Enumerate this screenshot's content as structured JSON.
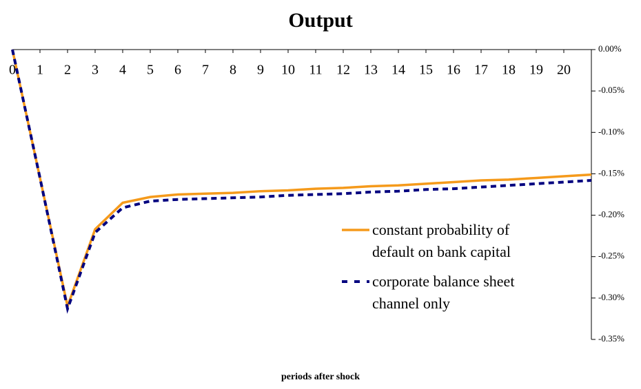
{
  "chart_data": {
    "type": "line",
    "title": "Output",
    "x_label": "periods after shock",
    "x": [
      0,
      1,
      2,
      3,
      4,
      5,
      6,
      7,
      8,
      9,
      10,
      11,
      12,
      13,
      14,
      15,
      16,
      17,
      18,
      19,
      20,
      21
    ],
    "xlim": [
      0,
      21
    ],
    "xticks": [
      0,
      1,
      2,
      3,
      4,
      5,
      6,
      7,
      8,
      9,
      10,
      11,
      12,
      13,
      14,
      15,
      16,
      17,
      18,
      19,
      20
    ],
    "ylim": [
      -0.35,
      0
    ],
    "yticks": [
      {
        "value": 0,
        "label": "0.00%"
      },
      {
        "value": -0.05,
        "label": "-0.05%"
      },
      {
        "value": -0.1,
        "label": "-0.10%"
      },
      {
        "value": -0.15,
        "label": "-0.15%"
      },
      {
        "value": -0.2,
        "label": "-0.20%"
      },
      {
        "value": -0.25,
        "label": "-0.25%"
      },
      {
        "value": -0.3,
        "label": "-0.30%"
      },
      {
        "value": -0.35,
        "label": "-0.35%"
      }
    ],
    "y_axis_side": "right",
    "x_axis_side": "top",
    "grid": false,
    "legend_position": "center-right",
    "series": [
      {
        "name": "constant probability of default on bank capital",
        "color": "#f59a1b",
        "dash": "solid",
        "values": [
          0,
          -0.155,
          -0.31,
          -0.217,
          -0.185,
          -0.178,
          -0.175,
          -0.174,
          -0.173,
          -0.171,
          -0.17,
          -0.168,
          -0.167,
          -0.165,
          -0.164,
          -0.162,
          -0.16,
          -0.158,
          -0.157,
          -0.155,
          -0.153,
          -0.151
        ]
      },
      {
        "name": "corporate balance sheet channel only",
        "color": "#00007f",
        "dash": "dashed",
        "values": [
          0,
          -0.155,
          -0.313,
          -0.221,
          -0.191,
          -0.183,
          -0.181,
          -0.18,
          -0.179,
          -0.178,
          -0.176,
          -0.175,
          -0.174,
          -0.172,
          -0.171,
          -0.169,
          -0.168,
          -0.166,
          -0.164,
          -0.162,
          -0.16,
          -0.158
        ]
      }
    ]
  }
}
